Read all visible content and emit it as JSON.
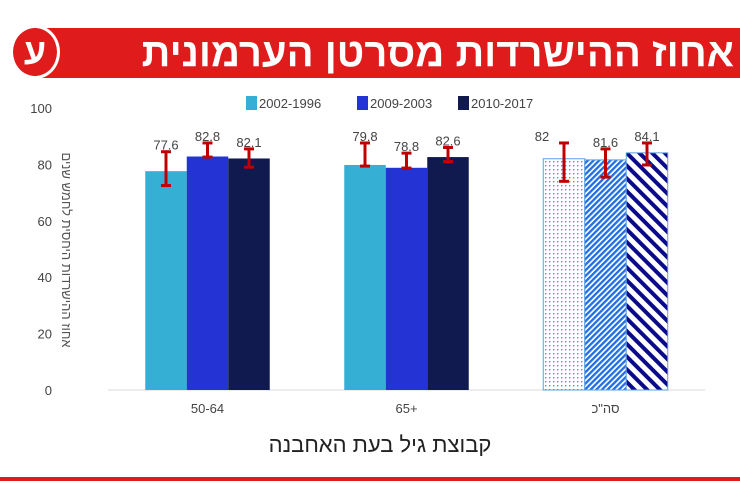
{
  "header": {
    "title": "אחוז ההישרדות מסרטן הערמונית",
    "logo_text": "ע",
    "brand_color": "#e01b1b"
  },
  "chart_data": {
    "type": "bar",
    "title": "",
    "xlabel": "קבוצת גיל בעת האחבנה",
    "ylabel": "אחוז ההישרדות היחסית לחמש שנים",
    "ylim": [
      0,
      100
    ],
    "yticks": [
      0,
      20,
      40,
      60,
      80,
      100
    ],
    "grid": false,
    "legend": "top",
    "categories": [
      "50-64",
      "+65",
      "סה\"כ"
    ],
    "series": [
      {
        "name": "2002-1996",
        "color": "#35afd3",
        "values": [
          77.6,
          79.8,
          82
        ],
        "error": [
          [
            72.5,
            84.5
          ],
          [
            79.4,
            87.6
          ],
          [
            74,
            87.6
          ]
        ],
        "total_pattern": "dots"
      },
      {
        "name": "2009-2003",
        "color": "#2433d4",
        "values": [
          82.8,
          78.8,
          81.6
        ],
        "error": [
          [
            82.6,
            87.6
          ],
          [
            78.7,
            84
          ],
          [
            75.5,
            85.5
          ]
        ],
        "total_pattern": "fine-diagonal"
      },
      {
        "name": "2010-2017",
        "color": "#111a4e",
        "values": [
          82.1,
          82.6,
          84.1
        ],
        "error": [
          [
            79,
            85.5
          ],
          [
            81,
            86
          ],
          [
            79.8,
            87.6
          ]
        ],
        "total_pattern": "wide-diagonal"
      }
    ],
    "data_labels": [
      [
        "77.6",
        "79.8",
        "82"
      ],
      [
        "82.8",
        "78.8",
        "81.6"
      ],
      [
        "82.1",
        "82.6",
        "84.1"
      ]
    ],
    "error_bar_color": "#c00000"
  }
}
